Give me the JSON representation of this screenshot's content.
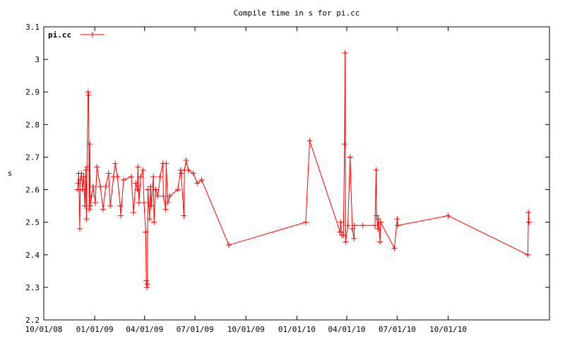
{
  "chart_data": {
    "type": "line",
    "title": "Compile time in s for pi.cc",
    "y_label": "s",
    "legend": "upper left",
    "xlim": [
      "10/01/08",
      "04/02/11"
    ],
    "xticks": [
      "10/01/08",
      "01/01/09",
      "04/01/09",
      "07/01/09",
      "10/01/09",
      "01/01/10",
      "04/01/10",
      "07/01/10",
      "10/01/10"
    ],
    "ylim": [
      2.2,
      3.1
    ],
    "yticks": [
      2.2,
      2.3,
      2.4,
      2.5,
      2.6,
      2.7,
      2.8,
      2.9,
      3,
      3.1
    ],
    "x": [
      "12/01/08",
      "12/02/08",
      "12/03/08",
      "12/05/08",
      "12/06/08",
      "12/08/08",
      "12/10/08",
      "12/12/08",
      "12/14/08",
      "12/16/08",
      "12/17/08",
      "12/18/08",
      "12/20/08",
      "12/21/08",
      "12/22/08",
      "12/23/08",
      "12/24/08",
      "12/26/08",
      "12/29/08",
      "01/02/09",
      "01/05/09",
      "01/11/09",
      "01/16/09",
      "01/21/09",
      "01/26/09",
      "01/29/09",
      "02/04/09",
      "02/07/09",
      "02/11/09",
      "02/16/09",
      "02/17/09",
      "02/22/09",
      "03/08/09",
      "03/12/09",
      "03/16/09",
      "03/19/09",
      "03/20/09",
      "03/22/09",
      "03/25/09",
      "03/29/09",
      "03/31/09",
      "04/03/09",
      "04/04/09",
      "04/05/09",
      "04/06/09",
      "04/07/09",
      "04/10/09",
      "04/12/09",
      "04/13/09",
      "04/17/09",
      "04/18/09",
      "04/21/09",
      "04/25/09",
      "04/29/09",
      "05/04/09",
      "05/05/09",
      "05/09/09",
      "05/10/09",
      "05/13/09",
      "05/16/09",
      "05/31/09",
      "06/05/09",
      "06/06/09",
      "06/11/09",
      "06/12/09",
      "06/15/09",
      "06/19/09",
      "06/28/09",
      "07/05/09",
      "07/13/09",
      "08/31/09",
      "01/17/10",
      "01/24/10",
      "03/20/10",
      "03/21/10",
      "03/23/10",
      "03/26/10",
      "03/28/10",
      "03/29/10",
      "03/30/10",
      "04/03/10",
      "04/07/10",
      "04/11/10",
      "04/14/10",
      "04/15/10",
      "04/30/10",
      "05/22/10",
      "05/24/10",
      "05/25/10",
      "05/27/10",
      "05/28/10",
      "05/31/10",
      "06/01/10",
      "06/26/10",
      "07/01/10",
      "07/02/10",
      "10/01/10",
      "02/22/11",
      "02/23/11",
      "02/24/11"
    ],
    "series": [
      {
        "name": "pi.cc",
        "color": "#ff0000",
        "values": [
          2.6,
          2.62,
          2.65,
          2.48,
          2.63,
          2.65,
          2.6,
          2.64,
          2.55,
          2.66,
          2.51,
          2.67,
          2.9,
          2.89,
          2.54,
          2.74,
          2.55,
          2.58,
          2.61,
          2.56,
          2.67,
          2.61,
          2.54,
          2.61,
          2.65,
          2.55,
          2.64,
          2.68,
          2.64,
          2.55,
          2.52,
          2.63,
          2.64,
          2.53,
          2.62,
          2.6,
          2.67,
          2.56,
          2.64,
          2.66,
          2.56,
          2.47,
          2.32,
          2.3,
          2.31,
          2.6,
          2.51,
          2.61,
          2.55,
          2.64,
          2.5,
          2.6,
          2.58,
          2.64,
          2.68,
          2.58,
          2.54,
          2.68,
          2.56,
          2.58,
          2.6,
          2.66,
          2.65,
          2.52,
          2.66,
          2.69,
          2.66,
          2.65,
          2.62,
          2.63,
          2.43,
          2.5,
          2.75,
          2.47,
          2.5,
          2.46,
          2.46,
          2.74,
          3.02,
          2.44,
          2.49,
          2.7,
          2.48,
          2.45,
          2.49,
          2.49,
          2.49,
          2.66,
          2.52,
          2.48,
          2.51,
          2.44,
          2.5,
          2.42,
          2.51,
          2.49,
          2.52,
          2.4,
          2.53,
          2.5
        ]
      }
    ]
  }
}
